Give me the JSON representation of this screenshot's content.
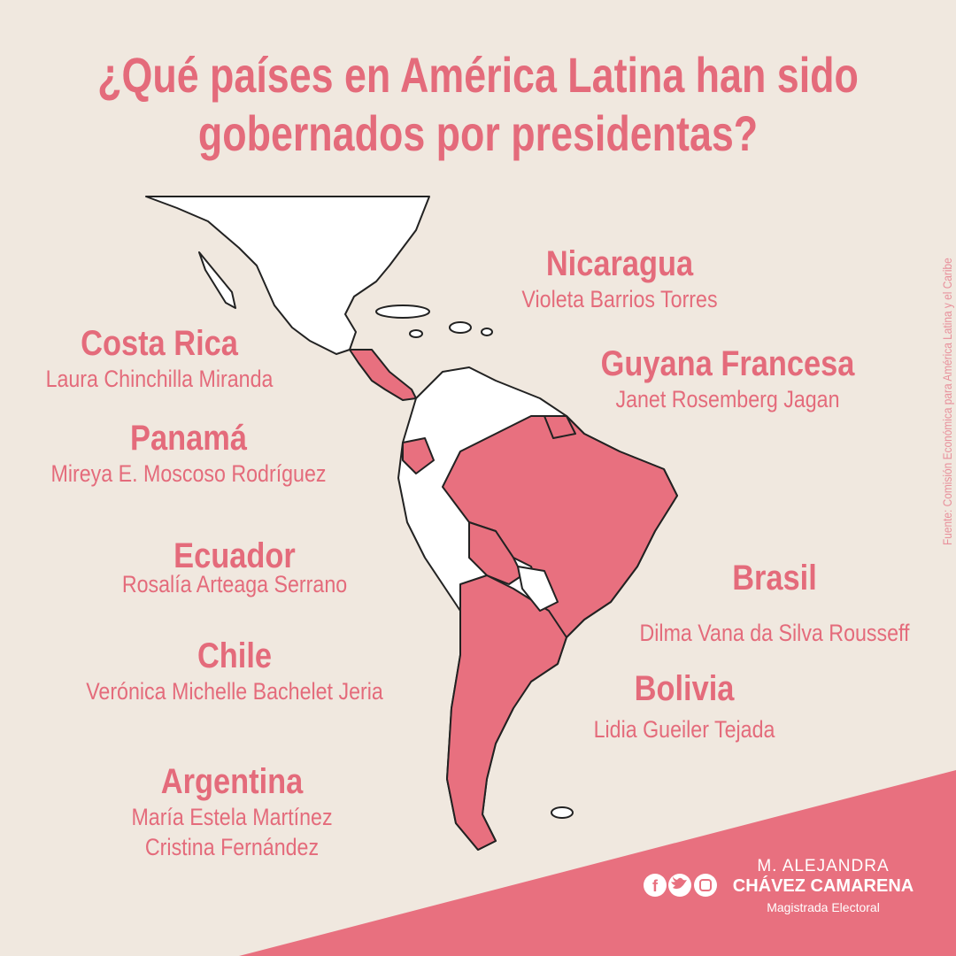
{
  "title": "¿Qué países en América Latina han sido gobernados por presidentas?",
  "source": "Fuente: Comisión Económica para América Latina y el Caribe",
  "countries": [
    {
      "name": "Nicaragua",
      "presidents": [
        "Violeta Barrios Torres"
      ]
    },
    {
      "name": "Costa Rica",
      "presidents": [
        "Laura Chinchilla Miranda"
      ]
    },
    {
      "name": "Guyana Francesa",
      "presidents": [
        "Janet Rosemberg Jagan"
      ]
    },
    {
      "name": "Panamá",
      "presidents": [
        "Mireya E. Moscoso Rodríguez"
      ]
    },
    {
      "name": "Ecuador",
      "presidents": [
        "Rosalía Arteaga Serrano"
      ]
    },
    {
      "name": "Brasil",
      "presidents": [
        "Dilma Vana da Silva Rousseff"
      ]
    },
    {
      "name": "Chile",
      "presidents": [
        "Verónica Michelle Bachelet Jeria"
      ]
    },
    {
      "name": "Bolivia",
      "presidents": [
        "Lidia Gueiler Tejada"
      ]
    },
    {
      "name": "Argentina",
      "presidents": [
        "María Estela Martínez",
        "Cristina Fernández"
      ]
    }
  ],
  "footer": {
    "name_line1": "M. ALEJANDRA",
    "name_line2": "CHÁVEZ CAMARENA",
    "role": "Magistrada Electoral"
  }
}
